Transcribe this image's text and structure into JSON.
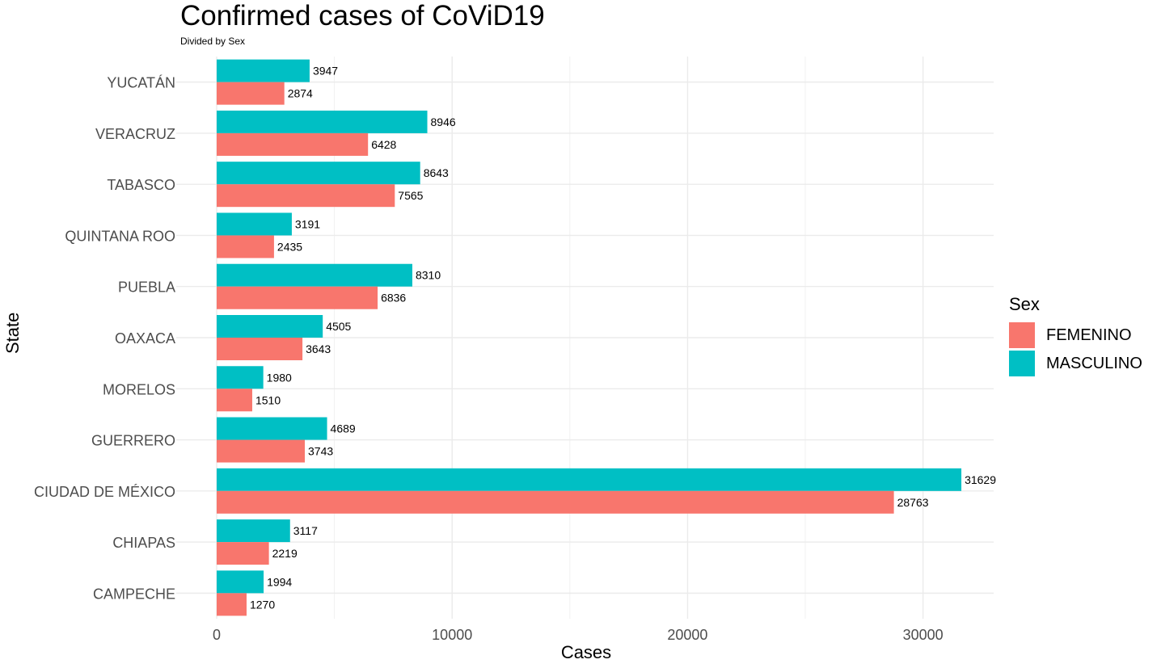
{
  "chart_data": {
    "type": "bar",
    "orientation": "horizontal",
    "title": "Confirmed cases of CoViD19",
    "subtitle": "Divided by Sex",
    "xlabel": "Cases",
    "ylabel": "State",
    "xlim": [
      0,
      33000
    ],
    "xticks": [
      0,
      10000,
      20000,
      30000
    ],
    "grid": true,
    "legend_title": "Sex",
    "legend_position": "right",
    "categories": [
      "YUCATÁN",
      "VERACRUZ",
      "TABASCO",
      "QUINTANA ROO",
      "PUEBLA",
      "OAXACA",
      "MORELOS",
      "GUERRERO",
      "CIUDAD DE MÉXICO",
      "CHIAPAS",
      "CAMPECHE"
    ],
    "series": [
      {
        "name": "FEMENINO",
        "color": "#F8766D",
        "values": [
          2874,
          6428,
          7565,
          2435,
          6836,
          3643,
          1510,
          3743,
          28763,
          2219,
          1270
        ]
      },
      {
        "name": "MASCULINO",
        "color": "#00BFC4",
        "values": [
          3947,
          8946,
          8643,
          3191,
          8310,
          4505,
          1980,
          4689,
          31629,
          3117,
          1994
        ]
      }
    ]
  }
}
